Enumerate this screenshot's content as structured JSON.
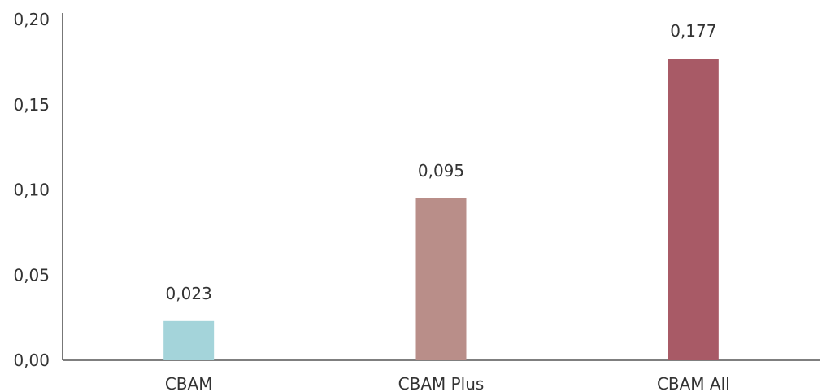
{
  "chart_data": {
    "type": "bar",
    "categories": [
      "CBAM",
      "CBAM Plus",
      "CBAM All"
    ],
    "values": [
      0.023,
      0.095,
      0.177
    ],
    "value_labels": [
      "0,023",
      "0,095",
      "0,177"
    ],
    "colors": [
      "#a4d4da",
      "#b98e89",
      "#a85a66"
    ],
    "ylim": [
      0,
      0.2
    ],
    "yticks": [
      0,
      0.05,
      0.1,
      0.15,
      0.2
    ],
    "ytick_labels": [
      "0,00",
      "0,05",
      "0,10",
      "0,15",
      "0,20"
    ],
    "title": "",
    "xlabel": "",
    "ylabel": "",
    "grid": false,
    "legend": "none"
  }
}
